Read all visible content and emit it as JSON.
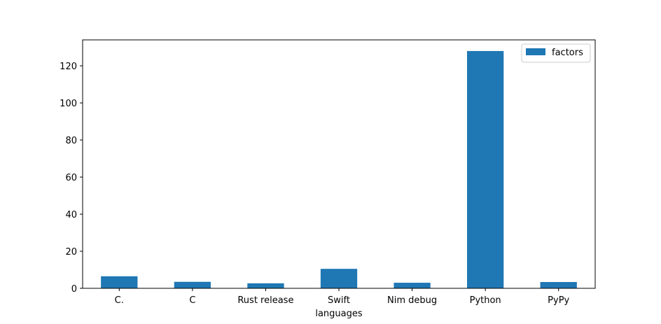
{
  "chart_data": {
    "type": "bar",
    "categories": [
      "C.",
      "C",
      "Rust release",
      "Swift",
      "Nim debug",
      "Python",
      "PyPy"
    ],
    "series": [
      {
        "name": "factors",
        "values": [
          6.5,
          3.5,
          2.7,
          10.5,
          3.0,
          128,
          3.4
        ],
        "color": "#1f77b4"
      }
    ],
    "xlabel": "languages",
    "ylabel": "",
    "ylim": [
      0,
      134
    ],
    "yticks": [
      0,
      20,
      40,
      60,
      80,
      100,
      120
    ],
    "grid": false,
    "legend": "top-right"
  }
}
